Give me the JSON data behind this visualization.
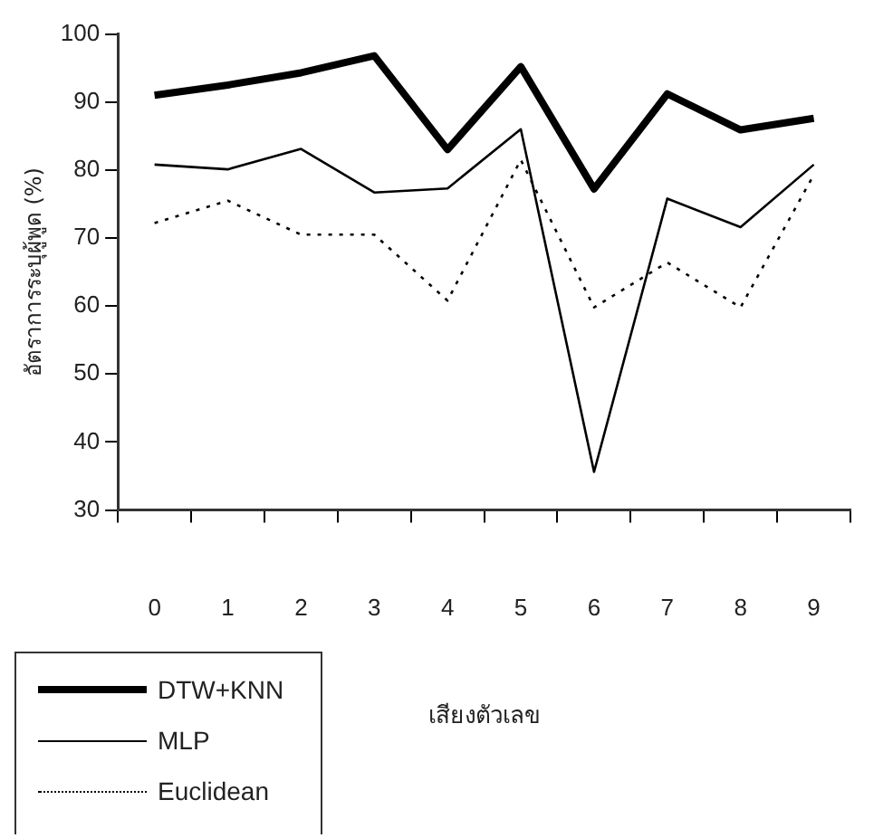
{
  "chart_data": {
    "type": "line",
    "ylabel": "อัตราการระบุผู้พูด (%)",
    "xlabel": "เสียงตัวเลข",
    "categories": [
      "0",
      "1",
      "2",
      "3",
      "4",
      "5",
      "6",
      "7",
      "8",
      "9"
    ],
    "series": [
      {
        "name": "DTW+KNN",
        "color": "#000000",
        "line_style": "solid",
        "values": [
          91,
          92.5,
          94.3,
          96.8,
          83,
          95.2,
          77.2,
          91.2,
          85.9,
          87.6
        ]
      },
      {
        "name": "MLP",
        "color": "#000000",
        "line_style": "solid",
        "values": [
          80.8,
          80.1,
          83.1,
          76.7,
          77.3,
          86,
          35.6,
          75.8,
          71.6,
          80.8
        ]
      },
      {
        "name": "Euclidean",
        "color": "#000000",
        "line_style": "dotted",
        "values": [
          72.2,
          75.5,
          70.5,
          70.5,
          60.8,
          81.5,
          59.8,
          66.4,
          59.8,
          79.3
        ]
      }
    ],
    "ylim": [
      30,
      100
    ],
    "yticks": [
      30,
      40,
      50,
      60,
      70,
      80,
      90,
      100
    ],
    "grid": false,
    "legend": "bottom left",
    "marker": "none"
  }
}
